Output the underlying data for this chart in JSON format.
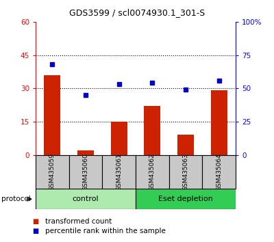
{
  "title": "GDS3599 / scl0074930.1_301-S",
  "samples": [
    "GSM435059",
    "GSM435060",
    "GSM435061",
    "GSM435062",
    "GSM435063",
    "GSM435064"
  ],
  "transformed_count": [
    36,
    2,
    15,
    22,
    9,
    29
  ],
  "percentile_rank": [
    68,
    45,
    53,
    54,
    49,
    56
  ],
  "left_ylim": [
    0,
    60
  ],
  "right_ylim": [
    0,
    100
  ],
  "left_yticks": [
    0,
    15,
    30,
    45,
    60
  ],
  "right_yticks": [
    0,
    25,
    50,
    75,
    100
  ],
  "right_yticklabels": [
    "0",
    "25",
    "50",
    "75",
    "100%"
  ],
  "groups": [
    {
      "label": "control",
      "start": 0,
      "end": 3,
      "color": "#AEEAAE"
    },
    {
      "label": "Eset depletion",
      "start": 3,
      "end": 6,
      "color": "#33CC55"
    }
  ],
  "bar_color": "#CC2200",
  "marker_color": "#0000CC",
  "bar_width": 0.5,
  "gridline_color": "#000000",
  "bg_color": "#FFFFFF",
  "tick_label_area_color": "#C8C8C8",
  "protocol_label": "protocol",
  "legend_bar_label": "transformed count",
  "legend_marker_label": "percentile rank within the sample"
}
